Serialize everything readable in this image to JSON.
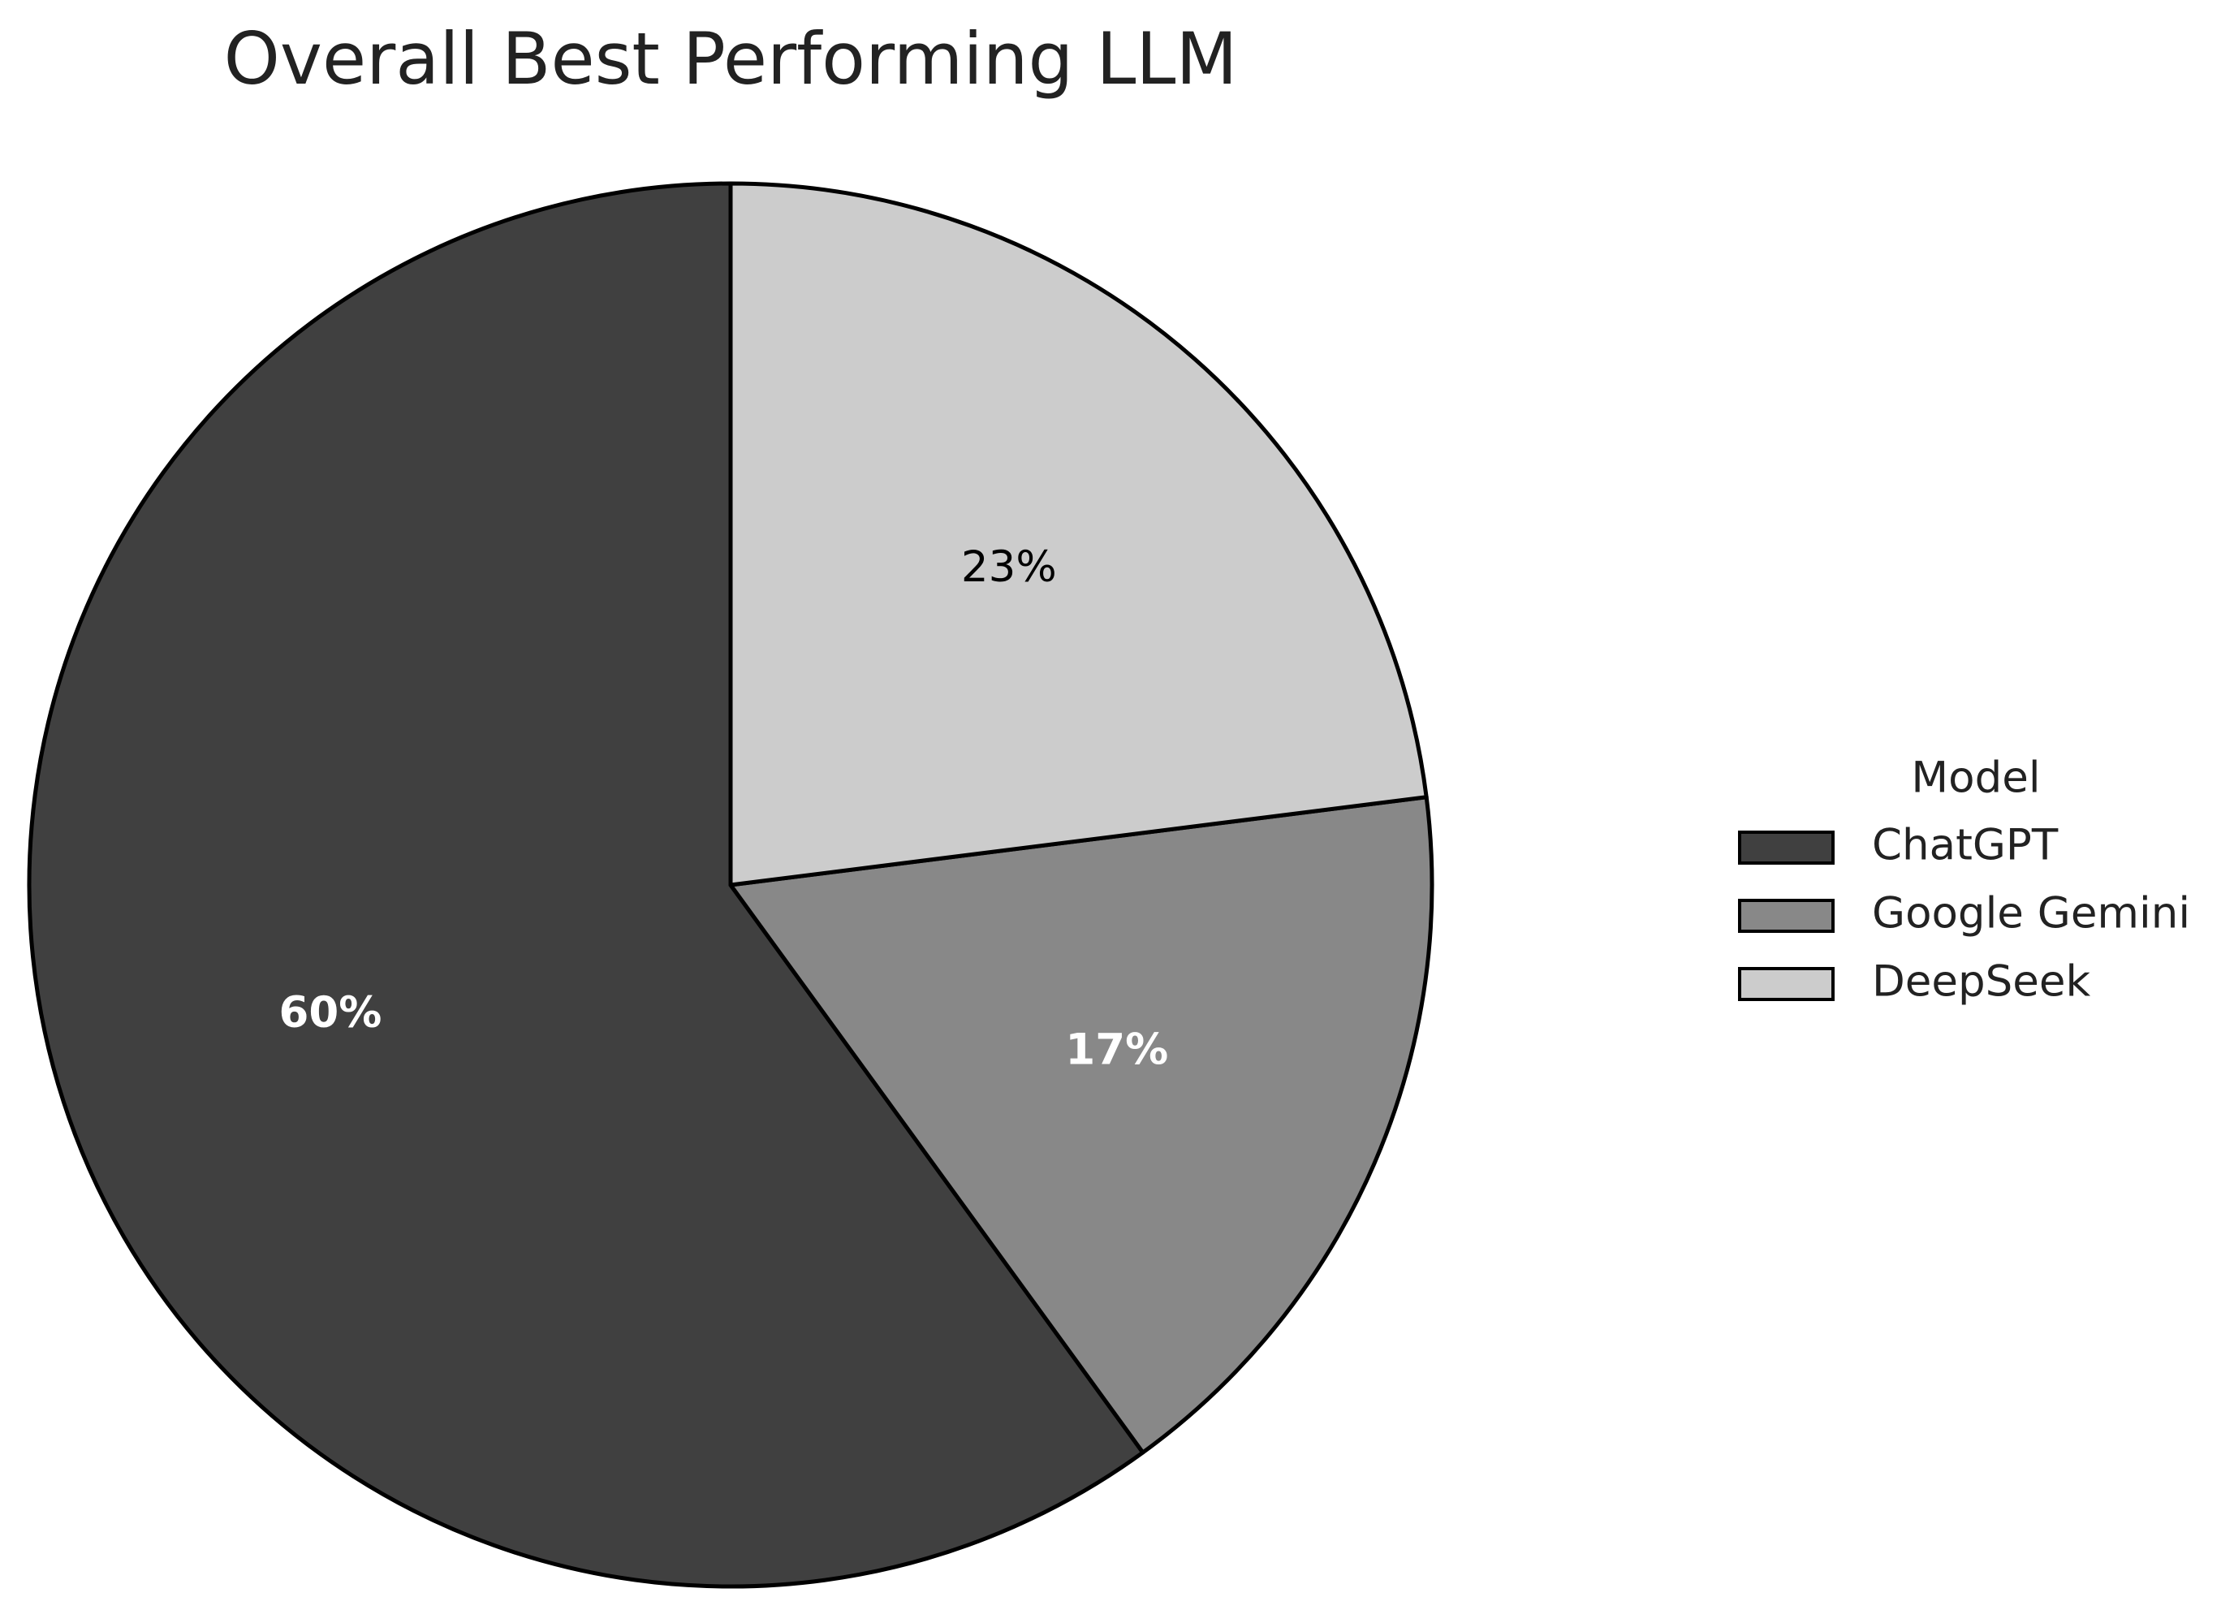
{
  "chart_data": {
    "type": "pie",
    "title": "Overall Best Performing LLM",
    "categories": [
      "ChatGPT",
      "Google Gemini",
      "DeepSeek"
    ],
    "values": [
      60,
      17,
      23
    ],
    "value_labels": [
      "60%",
      "17%",
      "23%"
    ],
    "colors": [
      "#404040",
      "#888888",
      "#cccccc"
    ],
    "label_colors": [
      "#ffffff",
      "#ffffff",
      "#000000"
    ],
    "label_bold": [
      true,
      true,
      false
    ],
    "start_angle": 90,
    "counterclockwise": true,
    "legend_title": "Model",
    "legend": "right"
  }
}
